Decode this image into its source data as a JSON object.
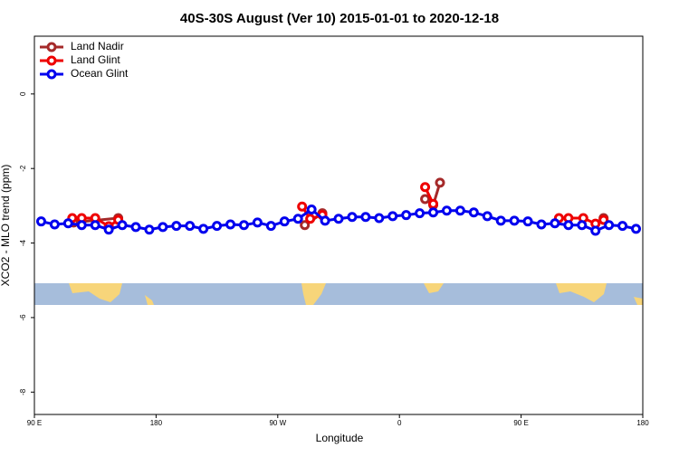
{
  "chart_data": {
    "type": "line",
    "title": "40S-30S August (Ver 10)   2015-01-01 to 2020-12-18",
    "xlabel": "Longitude",
    "ylabel": "XCO2 - MLO trend (ppm)",
    "xlim": [
      90,
      540
    ],
    "ylim": [
      -8.6,
      1.55
    ],
    "xticks": [
      {
        "value": 90,
        "label": "90 E"
      },
      {
        "value": 180,
        "label": "180"
      },
      {
        "value": 270,
        "label": "90 W"
      },
      {
        "value": 360,
        "label": "0"
      },
      {
        "value": 450,
        "label": "90 E"
      },
      {
        "value": 540,
        "label": "180"
      }
    ],
    "yticks": [
      0,
      -2,
      -4,
      -6,
      -8
    ],
    "legend": "top-left",
    "series": [
      {
        "name": "Land Nadir",
        "color": "#a52a2a",
        "x": [
          119,
          152,
          null,
          290,
          303,
          null,
          379,
          385,
          390,
          null,
          511
        ],
        "values": [
          -3.45,
          -3.33,
          null,
          -3.52,
          -3.2,
          null,
          -2.82,
          -2.98,
          -2.38,
          null,
          -3.33
        ]
      },
      {
        "name": "Land Glint",
        "color": "#ee0000",
        "x": [
          118,
          125,
          135,
          145,
          152,
          null,
          288,
          294,
          303,
          null,
          379,
          385,
          null,
          478,
          485,
          496,
          505,
          511
        ],
        "values": [
          -3.33,
          -3.33,
          -3.33,
          -3.55,
          -3.38,
          null,
          -3.02,
          -3.35,
          -3.25,
          null,
          -2.5,
          -2.95,
          null,
          -3.33,
          -3.33,
          -3.33,
          -3.48,
          -3.38
        ]
      },
      {
        "name": "Ocean Glint",
        "color": "#0000ee",
        "x": [
          95,
          105,
          115,
          125,
          135,
          145,
          155,
          165,
          175,
          185,
          195,
          205,
          215,
          225,
          235,
          245,
          255,
          265,
          275,
          285,
          295,
          305,
          315,
          325,
          335,
          345,
          355,
          365,
          375,
          385,
          395,
          405,
          415,
          425,
          435,
          445,
          455,
          465,
          475,
          485,
          495,
          505,
          515,
          525,
          535
        ],
        "values": [
          -3.42,
          -3.5,
          -3.47,
          -3.52,
          -3.52,
          -3.64,
          -3.52,
          -3.57,
          -3.64,
          -3.57,
          -3.54,
          -3.54,
          -3.62,
          -3.54,
          -3.5,
          -3.52,
          -3.45,
          -3.54,
          -3.42,
          -3.35,
          -3.1,
          -3.4,
          -3.35,
          -3.3,
          -3.3,
          -3.33,
          -3.28,
          -3.25,
          -3.2,
          -3.18,
          -3.13,
          -3.13,
          -3.18,
          -3.28,
          -3.4,
          -3.4,
          -3.42,
          -3.5,
          -3.47,
          -3.52,
          -3.52,
          -3.67,
          -3.52,
          -3.54,
          -3.62
        ]
      }
    ]
  }
}
